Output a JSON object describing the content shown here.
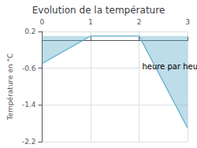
{
  "chart_data": {
    "type": "line",
    "title": "Evolution de la température",
    "xlabel": "heure par heure",
    "ylabel": "Température en °C",
    "x": [
      0,
      1,
      2,
      3
    ],
    "values": [
      -0.5,
      0.1,
      0.1,
      -1.9
    ],
    "fill_to": 0.1,
    "color": "#5aaac8",
    "xlim": [
      0,
      3
    ],
    "ylim": [
      -2.2,
      0.2
    ],
    "xticks": [
      0,
      1,
      2,
      3
    ],
    "yticks": [
      0.2,
      -0.6,
      -1.4,
      -2.2
    ],
    "grid": true
  }
}
